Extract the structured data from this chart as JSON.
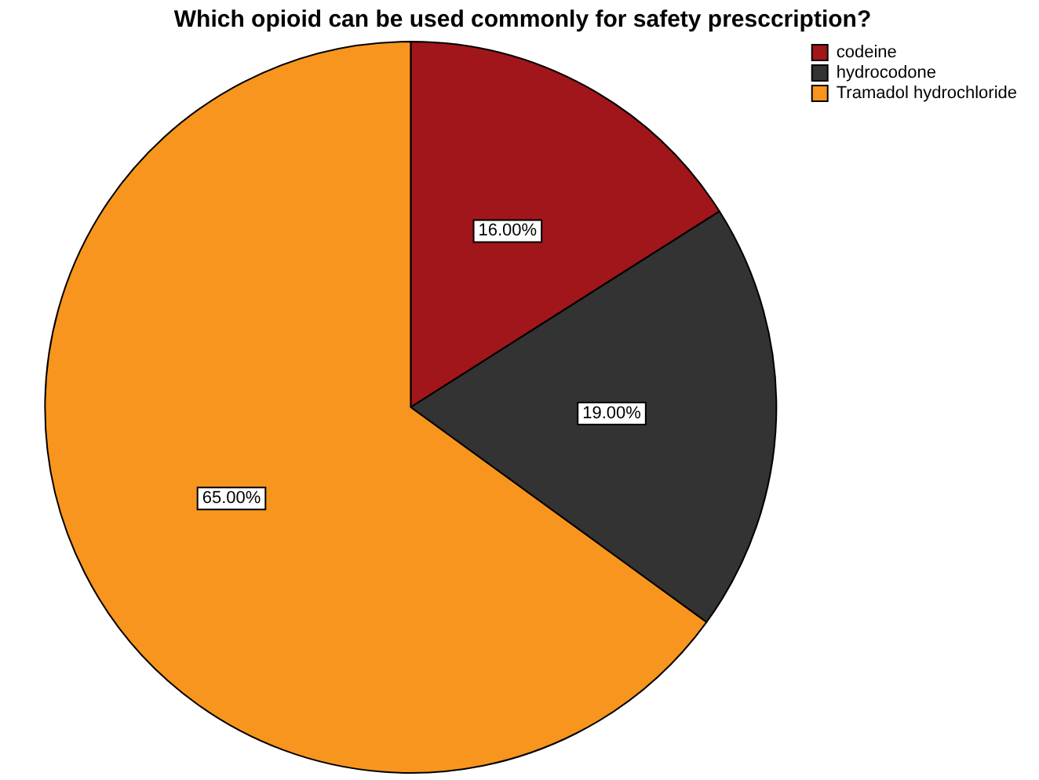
{
  "chart_data": {
    "type": "pie",
    "title": "Which opioid can be used commonly for safety presccription?",
    "categories": [
      "codeine",
      "hydrocodone",
      "Tramadol hydrochloride"
    ],
    "values": [
      16,
      19,
      65
    ],
    "value_labels": [
      "16.00%",
      "19.00%",
      "65.00%"
    ],
    "colors": [
      "#a0161a",
      "#333333",
      "#f7951e"
    ],
    "legend": "top right"
  }
}
